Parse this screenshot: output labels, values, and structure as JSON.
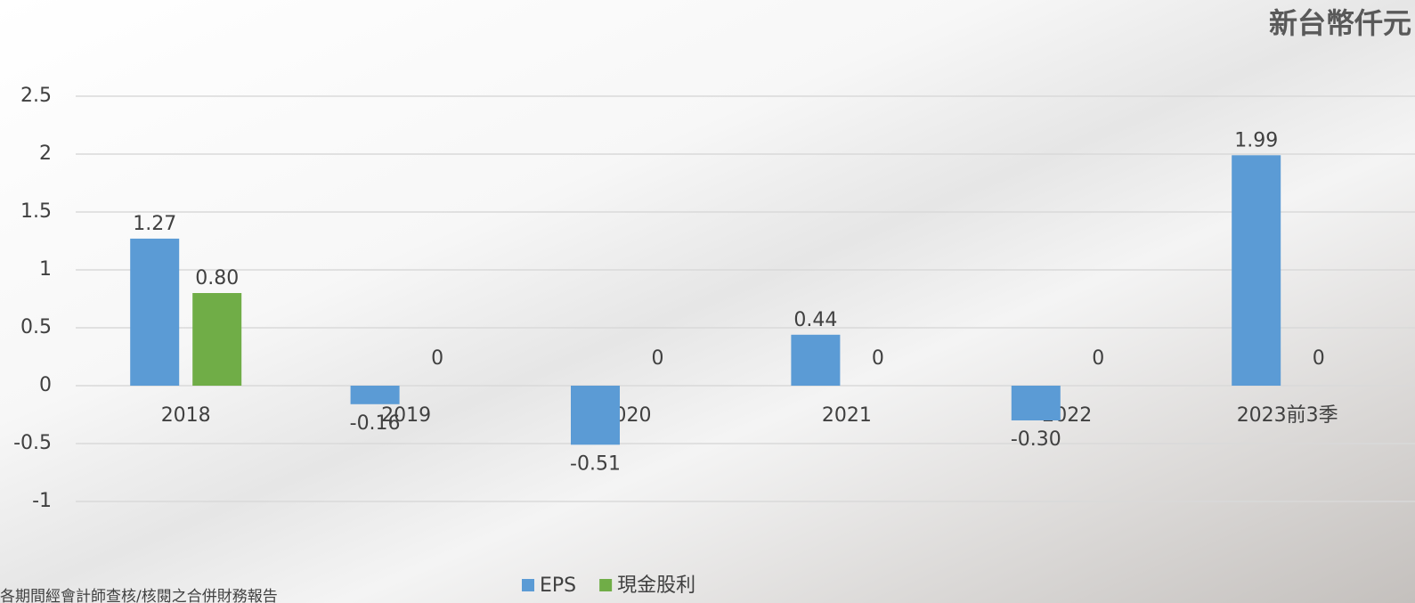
{
  "chart_data": {
    "type": "bar",
    "unit": "新台幣仟元",
    "note": "各期間經會計師查核/核閱之合併財務報告",
    "categories": [
      "2018",
      "2019",
      "2020",
      "2021",
      "2022",
      "2023前3季"
    ],
    "series": [
      {
        "name": "EPS",
        "color": "#5b9bd5",
        "values": [
          1.27,
          -0.16,
          -0.51,
          0.44,
          -0.3,
          1.99
        ],
        "value_labels": [
          "1.27",
          "-0.16",
          "-0.51",
          "0.44",
          "-0.30",
          "1.99"
        ]
      },
      {
        "name": "現金股利",
        "color": "#70ad47",
        "values": [
          0.8,
          0,
          0,
          0,
          0,
          0
        ],
        "value_labels": [
          "0.80",
          "0",
          "0",
          "0",
          "0",
          "0"
        ]
      }
    ],
    "ylim": [
      -1,
      2.5
    ],
    "yticks": [
      -1,
      -0.5,
      0,
      0.5,
      1,
      1.5,
      2,
      2.5
    ],
    "grid": true,
    "legend": "bottom"
  }
}
